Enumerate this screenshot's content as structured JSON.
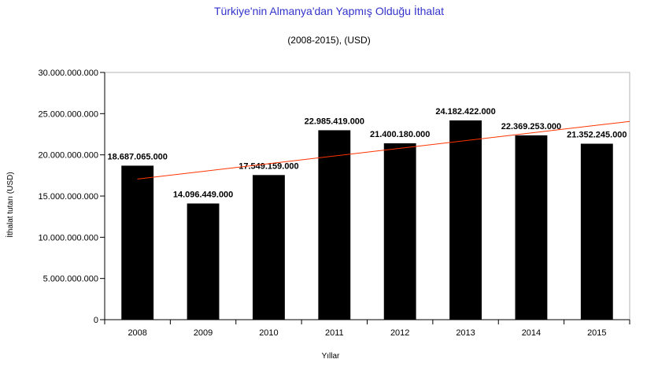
{
  "chart_data": {
    "type": "bar",
    "title": "Türkiye'nin Almanya'dan Yapmış Olduğu İthalat",
    "subtitle": "(2008-2015), (USD)",
    "xlabel": "Yıllar",
    "ylabel": "İthalat tutarı (USD)",
    "categories": [
      "2008",
      "2009",
      "2010",
      "2011",
      "2012",
      "2013",
      "2014",
      "2015"
    ],
    "values": [
      18687065000,
      14096449000,
      17549159000,
      22985419000,
      21400180000,
      24182422000,
      22369253000,
      21352245000
    ],
    "value_labels": [
      "18.687.065.000",
      "14.096.449.000",
      "17.549.159.000",
      "22.985.419.000",
      "21.400.180.000",
      "24.182.422.000",
      "22.369.253.000",
      "21.352.245.000"
    ],
    "ylim": [
      0,
      30000000000
    ],
    "yticks": [
      0,
      5000000000,
      10000000000,
      15000000000,
      20000000000,
      25000000000,
      30000000000
    ],
    "ytick_labels": [
      "0",
      "5.000.000.000",
      "10.000.000.000",
      "15.000.000.000",
      "20.000.000.000",
      "25.000.000.000",
      "30.000.000.000"
    ],
    "trendline": {
      "type": "linear",
      "color": "#ff3300"
    },
    "bar_color": "#000000",
    "grid": false,
    "legend": "none"
  }
}
